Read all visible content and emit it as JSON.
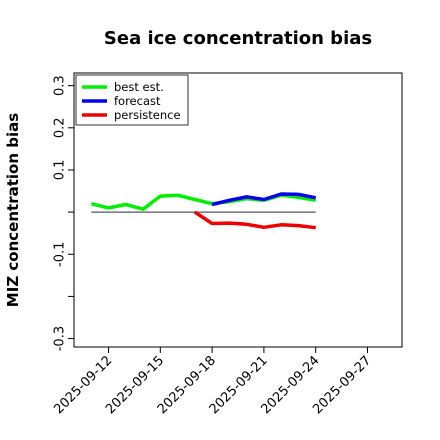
{
  "chart_data": {
    "type": "line",
    "title": "Sea ice concentration bias",
    "ylabel": "MIZ concentration bias",
    "xlabel": "",
    "ylim": [
      -0.32,
      0.33
    ],
    "xlim": [
      "2025-09-10",
      "2025-09-29"
    ],
    "yticks": [
      -0.3,
      -0.2,
      -0.1,
      0.0,
      0.1,
      0.2,
      0.3
    ],
    "ytick_labels": [
      "-0.3",
      "",
      "-0.1",
      "",
      "0.1",
      "0.2",
      "0.3"
    ],
    "xticks": [
      "2025-09-12",
      "2025-09-15",
      "2025-09-18",
      "2025-09-21",
      "2025-09-24",
      "2025-09-27"
    ],
    "highlight_tick": "2025-09-18",
    "highlight_color": "#228b22",
    "zero_line": 0.0,
    "legend_position": "top-left",
    "series": [
      {
        "name": "best est.",
        "color": "#00ee00",
        "x": [
          "2025-09-11",
          "2025-09-12",
          "2025-09-13",
          "2025-09-14",
          "2025-09-15",
          "2025-09-16",
          "2025-09-17",
          "2025-09-18",
          "2025-09-19",
          "2025-09-20",
          "2025-09-21",
          "2025-09-22",
          "2025-09-23",
          "2025-09-24"
        ],
        "values": [
          0.02,
          0.01,
          0.018,
          0.007,
          0.038,
          0.04,
          0.03,
          0.02,
          0.025,
          0.032,
          0.028,
          0.04,
          0.035,
          0.028
        ]
      },
      {
        "name": "forecast",
        "color": "#0000ee",
        "x": [
          "2025-09-18",
          "2025-09-19",
          "2025-09-20",
          "2025-09-21",
          "2025-09-22",
          "2025-09-23",
          "2025-09-24"
        ],
        "values": [
          0.018,
          0.028,
          0.036,
          0.03,
          0.043,
          0.042,
          0.034
        ]
      },
      {
        "name": "persistence",
        "color": "#ee0000",
        "x": [
          "2025-09-17",
          "2025-09-18",
          "2025-09-19",
          "2025-09-20",
          "2025-09-21",
          "2025-09-22",
          "2025-09-23",
          "2025-09-24"
        ],
        "values": [
          0.0,
          -0.027,
          -0.026,
          -0.029,
          -0.036,
          -0.03,
          -0.032,
          -0.037
        ]
      }
    ]
  }
}
